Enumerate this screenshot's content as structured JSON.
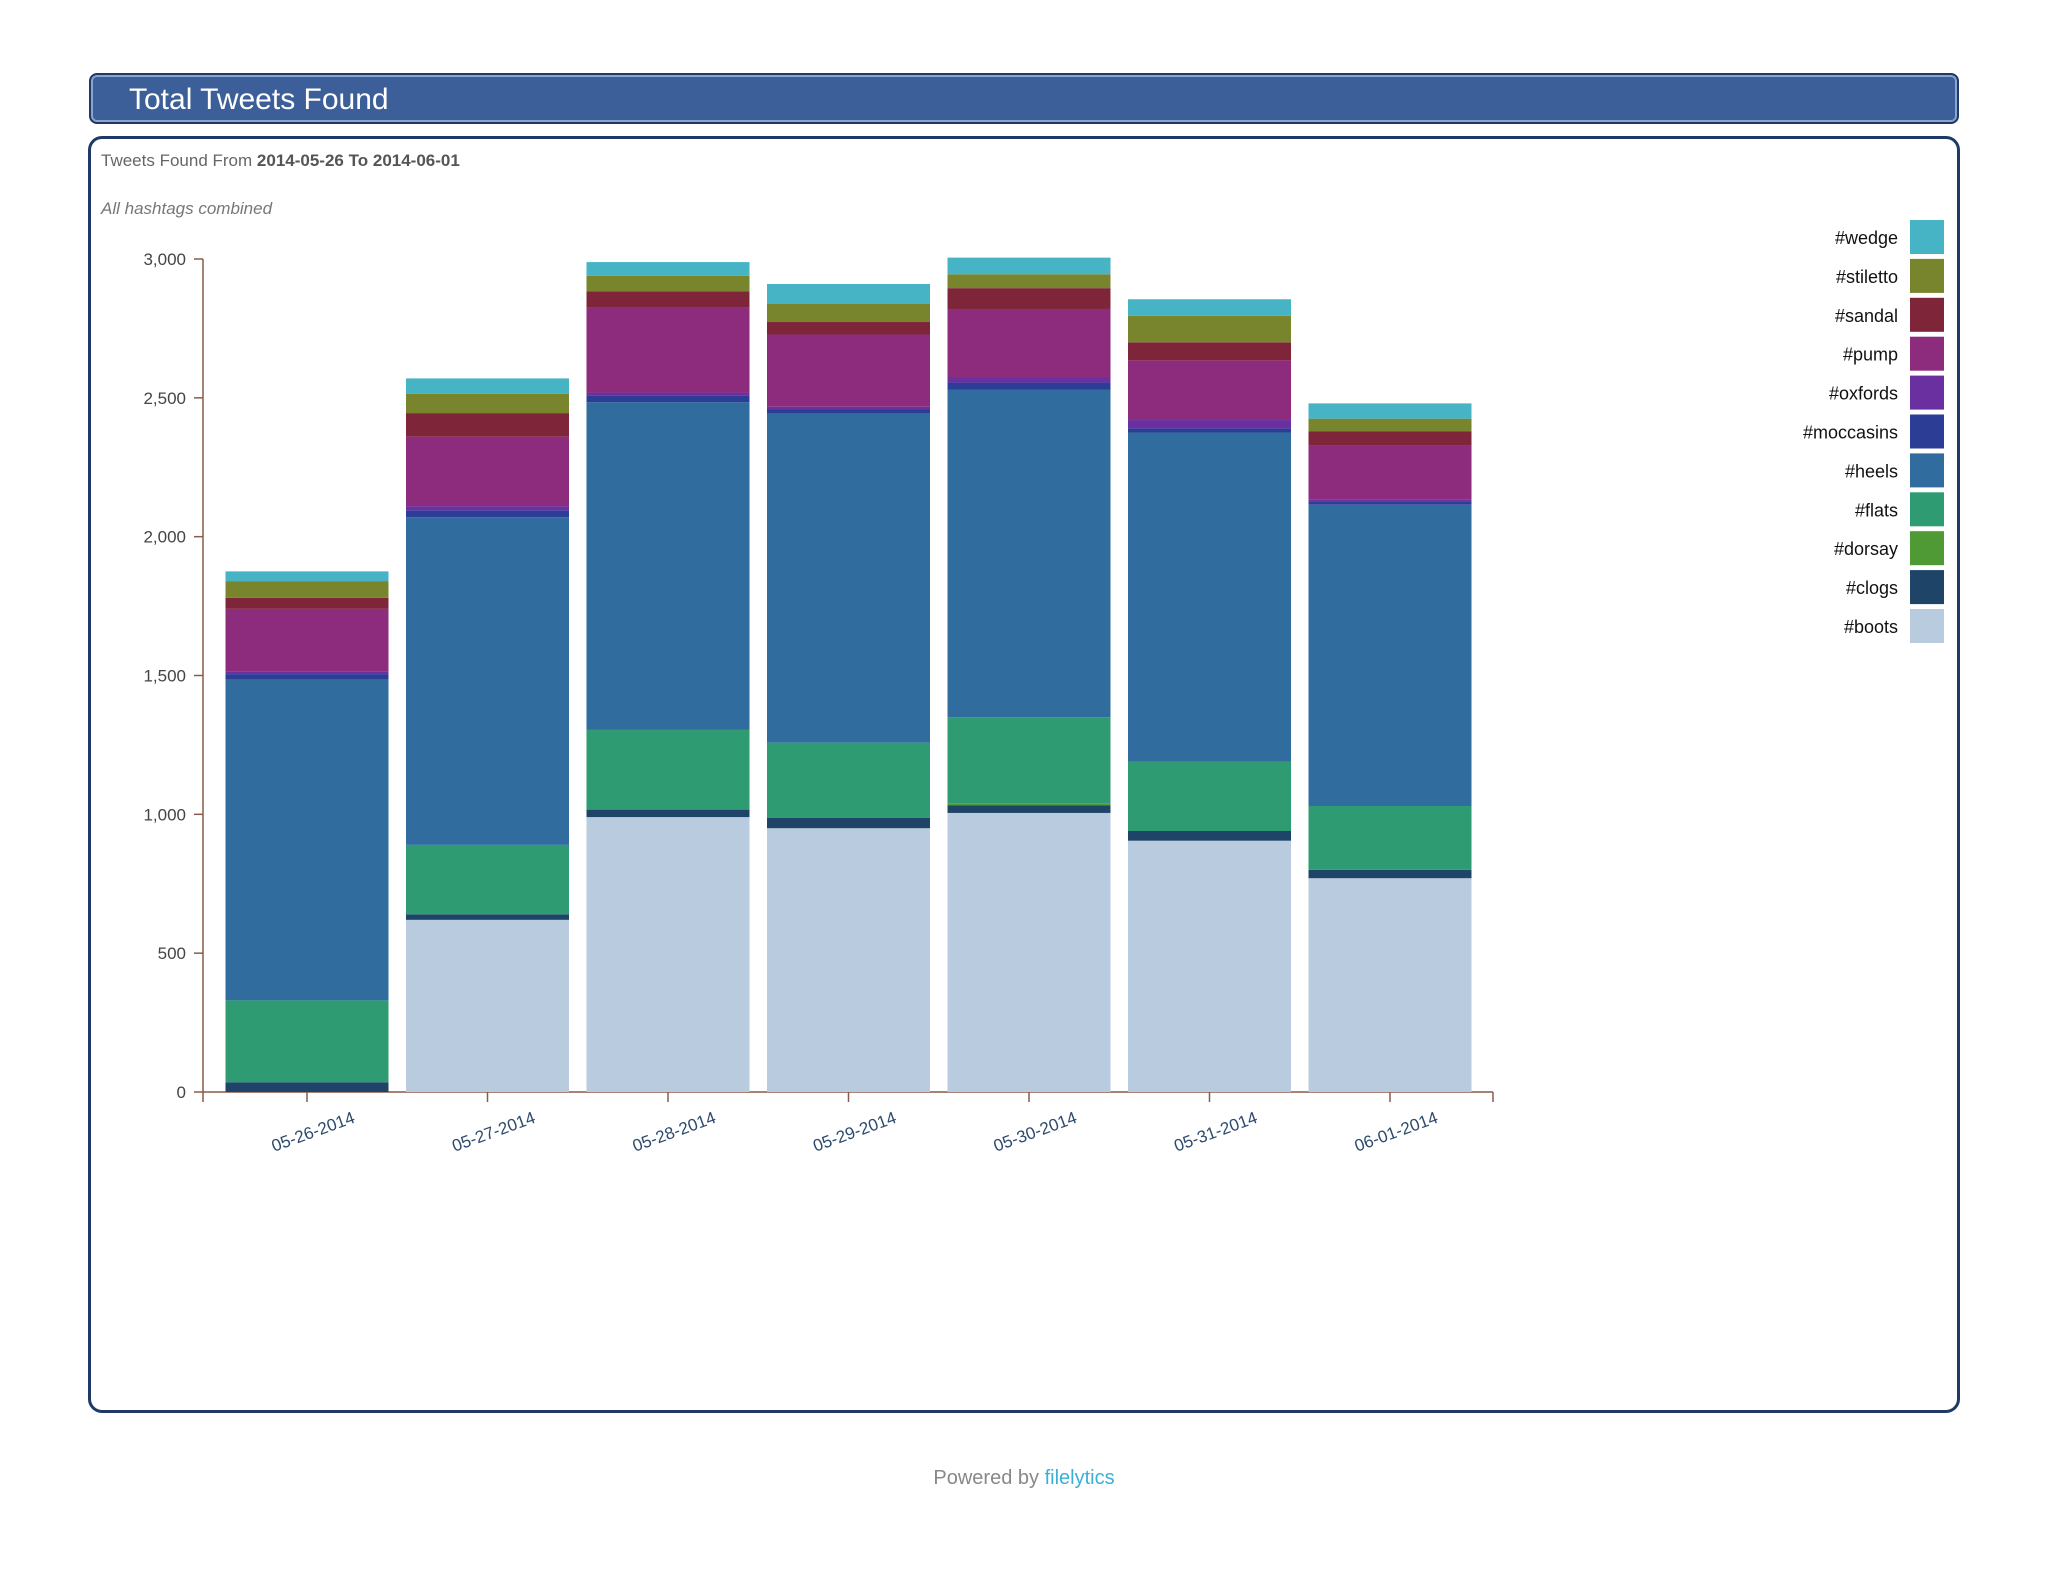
{
  "header": {
    "title": "Total Tweets Found"
  },
  "subtitle": {
    "prefix": "Tweets Found From",
    "from": "2014-05-26",
    "joiner": "To",
    "to": "2014-06-01"
  },
  "note": "All hashtags combined",
  "footer": {
    "prefix": "Powered by",
    "brand": "filelytics"
  },
  "chart_data": {
    "type": "bar",
    "stacked": true,
    "title": "",
    "xlabel": "",
    "ylabel": "",
    "ylim": [
      0,
      3000
    ],
    "yticks": [
      0,
      500,
      1000,
      1500,
      2000,
      2500,
      3000
    ],
    "ytick_labels": [
      "0",
      "500",
      "1,000",
      "1,500",
      "2,000",
      "2,500",
      "3,000"
    ],
    "grid": false,
    "legend_position": "right",
    "categories": [
      "05-26-2014",
      "05-27-2014",
      "05-28-2014",
      "05-29-2014",
      "05-30-2014",
      "05-31-2014",
      "06-01-2014"
    ],
    "series": [
      {
        "name": "#boots",
        "color": "#b9cbde",
        "values": [
          0,
          620,
          990,
          950,
          1005,
          905,
          770
        ]
      },
      {
        "name": "#clogs",
        "color": "#1e4468",
        "values": [
          35,
          20,
          27,
          38,
          28,
          35,
          30
        ]
      },
      {
        "name": "#dorsay",
        "color": "#4f9a34",
        "values": [
          0,
          0,
          0,
          0,
          5,
          0,
          0
        ]
      },
      {
        "name": "#flats",
        "color": "#2f9b72",
        "values": [
          295,
          250,
          287,
          270,
          312,
          250,
          230
        ]
      },
      {
        "name": "#heels",
        "color": "#306d9e",
        "values": [
          1155,
          1180,
          1180,
          1185,
          1180,
          1185,
          1085
        ]
      },
      {
        "name": "#moccasins",
        "color": "#2c3d95",
        "values": [
          20,
          25,
          25,
          15,
          25,
          15,
          12
        ]
      },
      {
        "name": "#oxfords",
        "color": "#6b30a0",
        "values": [
          10,
          15,
          10,
          10,
          20,
          30,
          8
        ]
      },
      {
        "name": "#pump",
        "color": "#8d2b7c",
        "values": [
          225,
          250,
          305,
          260,
          245,
          215,
          195
        ]
      },
      {
        "name": "#sandal",
        "color": "#7f2539",
        "values": [
          40,
          85,
          60,
          45,
          75,
          65,
          50
        ]
      },
      {
        "name": "#stiletto",
        "color": "#79852d",
        "values": [
          60,
          70,
          55,
          65,
          50,
          95,
          45
        ]
      },
      {
        "name": "#wedge",
        "color": "#47b4c6",
        "values": [
          35,
          55,
          50,
          72,
          60,
          60,
          55
        ]
      }
    ]
  }
}
